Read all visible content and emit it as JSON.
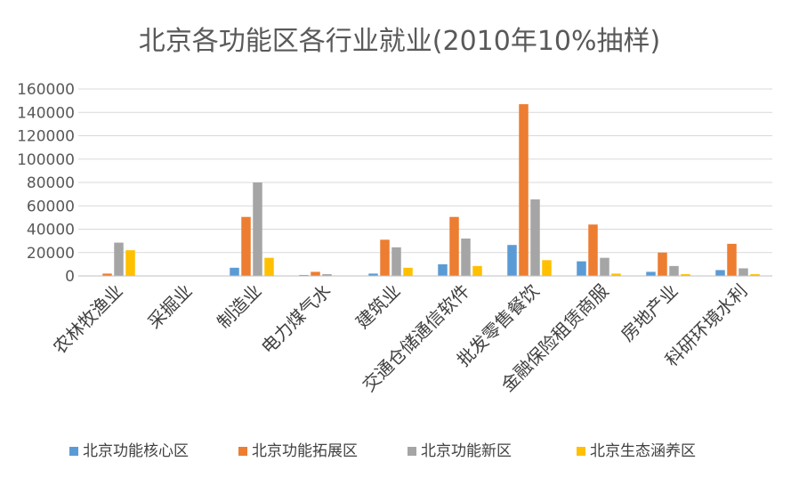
{
  "chart_data": {
    "type": "bar",
    "title": "北京各功能区各行业就业(2010年10%抽样)",
    "xlabel": "",
    "ylabel": "",
    "ylim": [
      0,
      160000
    ],
    "yticks": [
      0,
      20000,
      40000,
      60000,
      80000,
      100000,
      120000,
      140000,
      160000
    ],
    "grid": true,
    "legend_position": "bottom",
    "categories": [
      "农林牧渔业",
      "采掘业",
      "制造业",
      "电力煤气水",
      "建筑业",
      "交通仓储通信软件",
      "批发零售餐饮",
      "金融保险租赁商服",
      "房地产业",
      "科研环境水利"
    ],
    "series": [
      {
        "name": "北京功能核心区",
        "color": "#5B9BD5",
        "values": [
          200,
          0,
          7000,
          800,
          2000,
          10000,
          26500,
          12500,
          3500,
          5000
        ]
      },
      {
        "name": "北京功能拓展区",
        "color": "#ED7D31",
        "values": [
          2000,
          100,
          50500,
          3500,
          31000,
          50500,
          147000,
          44000,
          20000,
          27500
        ]
      },
      {
        "name": "北京功能新区",
        "color": "#A5A5A5",
        "values": [
          28500,
          100,
          80000,
          1500,
          24500,
          32000,
          65500,
          15500,
          8500,
          6500
        ]
      },
      {
        "name": "北京生态涵养区",
        "color": "#FFC000",
        "values": [
          22000,
          50,
          15500,
          300,
          7000,
          8500,
          13500,
          2000,
          1500,
          1500
        ]
      }
    ]
  }
}
